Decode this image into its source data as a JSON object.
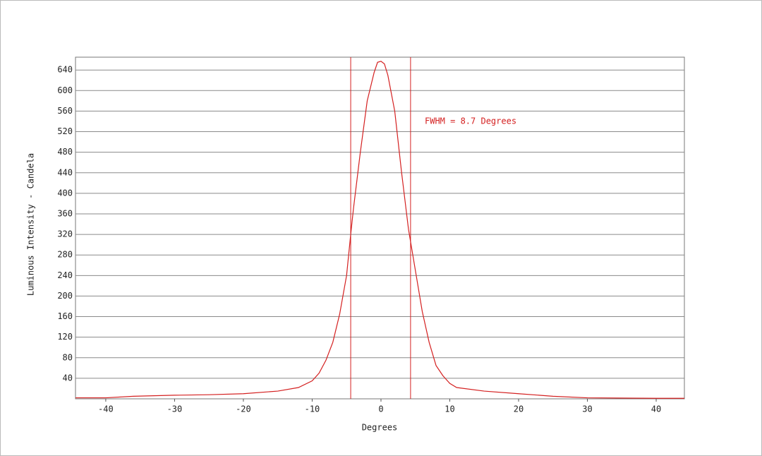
{
  "chart_data": {
    "type": "line",
    "x_label": "Degrees",
    "y_label": "Luminous Intensity - Candela",
    "annotation": "FWHM =  8.7 Degrees",
    "color": "#d42020",
    "x": [
      -44.4,
      -40,
      -36,
      -30,
      -25,
      -20,
      -15,
      -12,
      -10,
      -9,
      -8,
      -7,
      -6,
      -5,
      -4.4,
      -4,
      -3,
      -2,
      -1,
      -0.5,
      0,
      0.5,
      1,
      2,
      3,
      4,
      5,
      6,
      7,
      8,
      9,
      10,
      11,
      15,
      20,
      25,
      30,
      40,
      44.1
    ],
    "values": [
      2,
      2,
      5,
      7,
      8,
      10,
      15,
      22,
      35,
      50,
      75,
      110,
      165,
      240,
      320,
      370,
      480,
      580,
      635,
      655,
      657,
      652,
      630,
      560,
      440,
      330,
      250,
      170,
      110,
      65,
      45,
      30,
      22,
      15,
      10,
      5,
      2,
      1,
      1
    ],
    "fwhm_lines": [
      -4.4,
      4.3
    ],
    "xlim": [
      -44.4,
      44.1
    ],
    "ylim": [
      0,
      665
    ],
    "xticks": [
      -40,
      -30,
      -20,
      -10,
      0,
      10,
      20,
      30,
      40
    ],
    "yticks": [
      40,
      80,
      120,
      160,
      200,
      240,
      280,
      320,
      360,
      400,
      440,
      480,
      520,
      560,
      600,
      640
    ],
    "grid": true
  }
}
